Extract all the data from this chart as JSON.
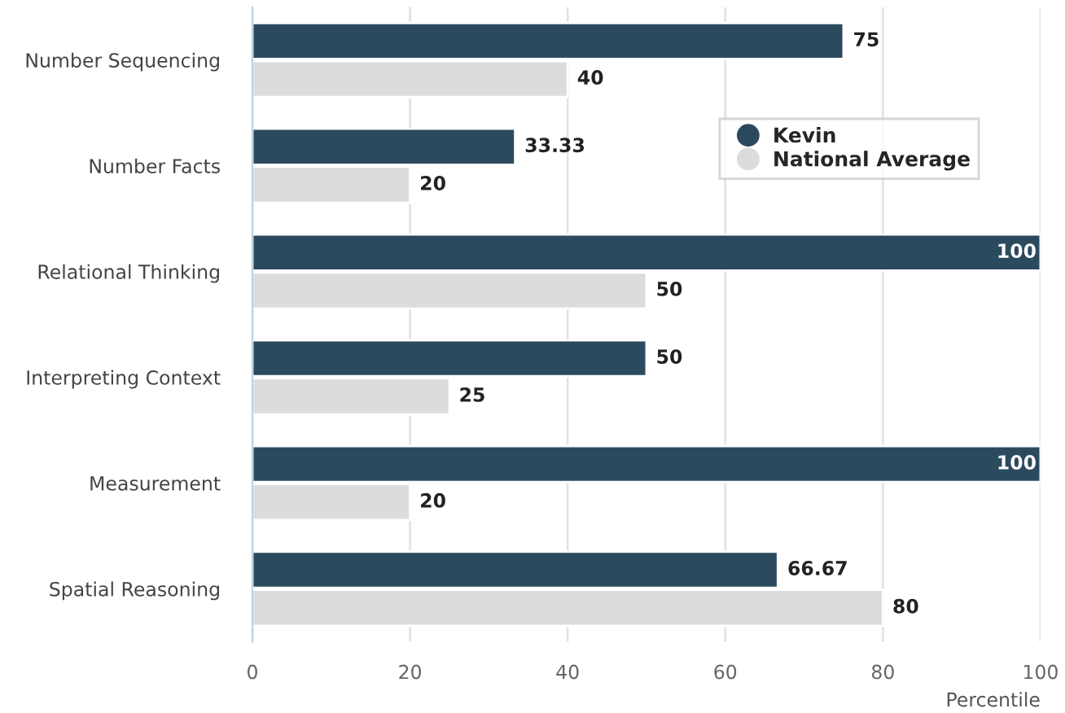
{
  "chart_data": {
    "type": "bar",
    "orientation": "horizontal",
    "xlabel": "Percentile",
    "categories": [
      "Number Sequencing",
      "Number Facts",
      "Relational Thinking",
      "Interpreting Context",
      "Measurement",
      "Spatial Reasoning"
    ],
    "series": [
      {
        "name": "Kevin",
        "color": "#2b4a5e",
        "values": [
          75,
          33.33,
          100,
          50,
          100,
          66.67
        ]
      },
      {
        "name": "National Average",
        "color": "#dcdcdc",
        "values": [
          40,
          20,
          50,
          25,
          20,
          80
        ]
      }
    ],
    "xlim": [
      0,
      100
    ],
    "xticks": [
      0,
      20,
      40,
      60,
      80,
      100
    ],
    "grid": "x",
    "legend": "top right",
    "data_labels": true
  }
}
